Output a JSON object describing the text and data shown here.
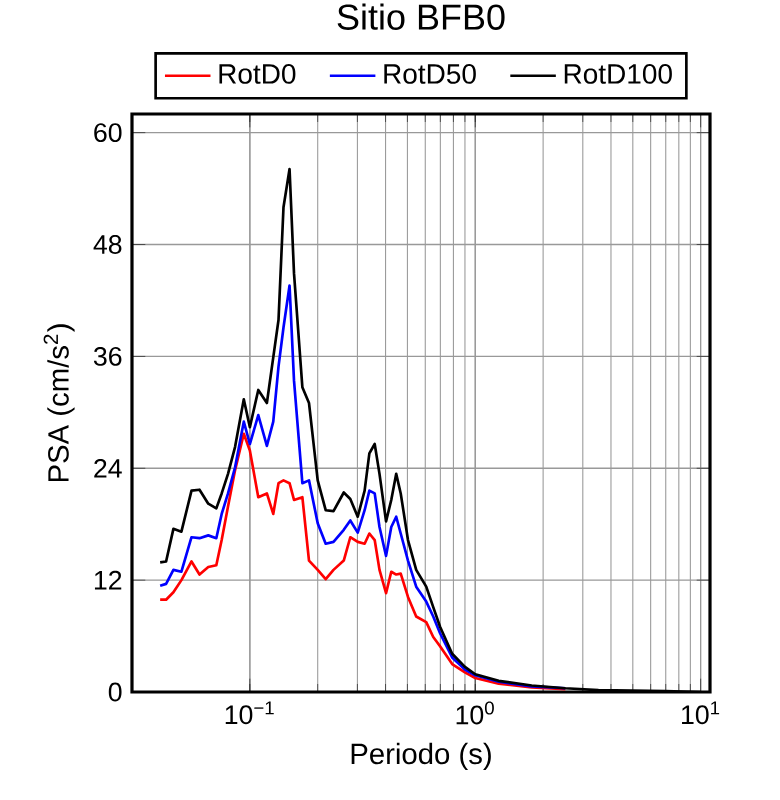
{
  "chart_data": {
    "type": "line",
    "title": "Sitio BFB0",
    "xlabel": "Periodo (s)",
    "ylabel": "PSA (cm/s$^{2}$)",
    "log": "x",
    "grid": true,
    "legend": "top",
    "line_style": "solid",
    "marker": "none",
    "xlim": [
      0.03,
      11
    ],
    "ylim": [
      0,
      62
    ],
    "xticks": [
      {
        "value": 0.1,
        "label": "10$^{−1}$"
      },
      {
        "value": 1,
        "label": "10$^{0}$"
      },
      {
        "value": 10,
        "label": "10$^{1}$"
      }
    ],
    "yticks": [
      0,
      12,
      24,
      36,
      48,
      60
    ],
    "x": [
      0.04,
      0.0425,
      0.0458,
      0.0497,
      0.0551,
      0.0598,
      0.0654,
      0.071,
      0.075,
      0.08,
      0.086,
      0.094,
      0.1,
      0.109,
      0.119,
      0.127,
      0.134,
      0.141,
      0.15,
      0.157,
      0.171,
      0.183,
      0.2,
      0.217,
      0.235,
      0.261,
      0.279,
      0.301,
      0.323,
      0.339,
      0.358,
      0.376,
      0.402,
      0.424,
      0.446,
      0.467,
      0.503,
      0.547,
      0.606,
      0.651,
      0.698,
      0.79,
      0.9,
      1.0,
      1.27,
      1.78,
      2.51,
      3.52,
      6.97,
      10
    ],
    "series": [
      {
        "name": "RotD0",
        "color": "#ff0000",
        "values": [
          9.9,
          9.9,
          10.7,
          12,
          14,
          12.6,
          13.4,
          13.6,
          16.3,
          19.9,
          23.8,
          27.7,
          25.9,
          20.9,
          21.3,
          19.1,
          22.4,
          22.7,
          22.4,
          20.6,
          20.9,
          14.1,
          13.1,
          12.1,
          13.1,
          14.1,
          16.6,
          16.1,
          15.9,
          17,
          16.3,
          13.1,
          10.6,
          12.9,
          12.6,
          12.7,
          10.2,
          8.1,
          7.5,
          5.9,
          4.9,
          3.0,
          2.1,
          1.5,
          0.9,
          0.5,
          0.3,
          null,
          null,
          null
        ]
      },
      {
        "name": "RotD50",
        "color": "#0000ff",
        "values": [
          11.4,
          11.6,
          13.1,
          12.9,
          16.6,
          16.5,
          16.8,
          16.5,
          19.1,
          21.3,
          24.1,
          29,
          26.6,
          29.7,
          26.4,
          29,
          34.9,
          39.1,
          43.6,
          33.4,
          22.4,
          22.7,
          18.1,
          15.9,
          16.1,
          17.4,
          18.4,
          17.1,
          19.5,
          21.6,
          21.3,
          17.7,
          14.6,
          17.7,
          18.8,
          17,
          14.1,
          11.3,
          9.7,
          8.1,
          6.3,
          3.7,
          2.4,
          1.8,
          1.1,
          0.6,
          0.4,
          null,
          null,
          null
        ]
      },
      {
        "name": "RotD100",
        "color": "#000000",
        "values": [
          13.9,
          14,
          17.5,
          17.2,
          21.6,
          21.7,
          20.2,
          19.7,
          21.3,
          23.4,
          26.3,
          31.4,
          28.4,
          32.4,
          31,
          35.9,
          39.9,
          52,
          56.1,
          44.9,
          32.7,
          31,
          22.7,
          19.5,
          19.4,
          21.4,
          20.7,
          18.8,
          21.6,
          25.6,
          26.6,
          23.4,
          18.3,
          20.6,
          23.4,
          21.3,
          16.3,
          13.1,
          11.3,
          9.1,
          7,
          4.1,
          2.7,
          1.9,
          1.2,
          0.7,
          0.4,
          0.2,
          0.1,
          0
        ]
      }
    ]
  }
}
